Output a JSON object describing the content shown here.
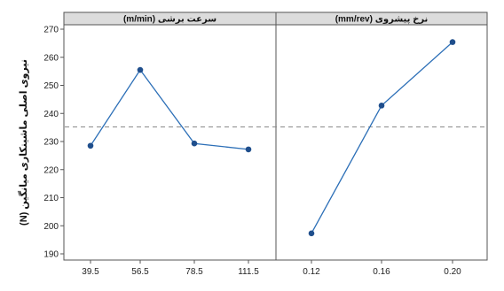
{
  "chart_data": {
    "type": "line",
    "ylabel": "نیروی اصلی ماشینکاری میانگین (N)",
    "ylim": [
      187,
      272
    ],
    "yticks": [
      190,
      200,
      210,
      220,
      230,
      240,
      250,
      260,
      270
    ],
    "reference_line": 235.2,
    "grid": false,
    "colors": {
      "line": "#2c6fb7",
      "marker": "#1f4e8c",
      "reference": "#8a8a8a",
      "header_bg": "#dcdcdc"
    },
    "panels": [
      {
        "title": "سرعت برشی (m/min)",
        "categories": [
          "39.5",
          "56.5",
          "78.5",
          "111.5"
        ],
        "values": [
          228.5,
          255.5,
          229.3,
          227.2
        ]
      },
      {
        "title": "نرخ پیشروی (mm/rev)",
        "categories": [
          "0.12",
          "0.16",
          "0.20"
        ],
        "values": [
          197.3,
          242.8,
          265.4
        ]
      }
    ]
  }
}
